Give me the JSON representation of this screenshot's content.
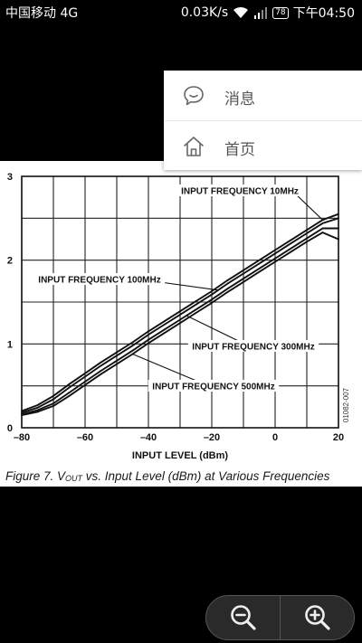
{
  "status_bar": {
    "carrier": "中国移动 4G",
    "net_speed": "0.03K/s",
    "battery": "78",
    "time": "下午04:50",
    "icons": [
      "wifi-icon",
      "signal-icon",
      "battery-icon"
    ]
  },
  "menu": {
    "items": [
      {
        "label": "消息",
        "icon": "chat-bubble-icon"
      },
      {
        "label": "首页",
        "icon": "home-icon"
      }
    ]
  },
  "viewer": {
    "caption_prefix": "Figure 7. V",
    "caption_subscript": "OUT",
    "caption_suffix": " vs. Input Level (dBm) at Various Frequencies",
    "figure_id": "01082-007",
    "zoom_icons": [
      "zoom-out-icon",
      "zoom-in-icon"
    ]
  },
  "chart_data": {
    "type": "line",
    "xlabel": "INPUT LEVEL (dBm)",
    "ylabel": "",
    "xlim": [
      -80,
      20
    ],
    "ylim": [
      0,
      3
    ],
    "x_ticks": [
      -80,
      -60,
      -40,
      -20,
      0,
      20
    ],
    "x_tick_labels": [
      "–80",
      "–60",
      "–40",
      "–20",
      "0",
      "20"
    ],
    "y_ticks": [
      0,
      1,
      2,
      3
    ],
    "y_tick_labels": [
      "0",
      "1",
      "2",
      "3"
    ],
    "grid": true,
    "x": [
      -80,
      -75,
      -70,
      -65,
      -60,
      -55,
      -50,
      -45,
      -40,
      -35,
      -30,
      -25,
      -20,
      -15,
      -10,
      -5,
      0,
      5,
      10,
      15,
      20
    ],
    "series": [
      {
        "name": "INPUT FREQUENCY 10MHz",
        "values": [
          0.2,
          0.27,
          0.38,
          0.52,
          0.65,
          0.78,
          0.9,
          1.02,
          1.15,
          1.27,
          1.39,
          1.51,
          1.63,
          1.76,
          1.88,
          2.0,
          2.12,
          2.24,
          2.36,
          2.48,
          2.55
        ]
      },
      {
        "name": "INPUT FREQUENCY 100MHz",
        "values": [
          0.18,
          0.24,
          0.34,
          0.48,
          0.61,
          0.74,
          0.86,
          0.98,
          1.11,
          1.23,
          1.35,
          1.47,
          1.59,
          1.72,
          1.84,
          1.96,
          2.08,
          2.2,
          2.32,
          2.44,
          2.5
        ]
      },
      {
        "name": "INPUT FREQUENCY 300MHz",
        "values": [
          0.16,
          0.21,
          0.29,
          0.42,
          0.55,
          0.68,
          0.8,
          0.92,
          1.05,
          1.17,
          1.29,
          1.41,
          1.53,
          1.66,
          1.78,
          1.9,
          2.02,
          2.14,
          2.26,
          2.38,
          2.38
        ]
      },
      {
        "name": "INPUT FREQUENCY 500MHz",
        "values": [
          0.15,
          0.19,
          0.26,
          0.38,
          0.51,
          0.64,
          0.76,
          0.88,
          1.01,
          1.13,
          1.25,
          1.37,
          1.49,
          1.62,
          1.74,
          1.86,
          1.98,
          2.1,
          2.22,
          2.33,
          2.25
        ]
      }
    ],
    "annotations": [
      {
        "text": "INPUT FREQUENCY 10MHz",
        "series": 0,
        "target_x": 15
      },
      {
        "text": "INPUT FREQUENCY 100MHz",
        "series": 1,
        "target_x": -18
      },
      {
        "text": "INPUT FREQUENCY 300MHz",
        "series": 2,
        "target_x": -28
      },
      {
        "text": "INPUT FREQUENCY 500MHz",
        "series": 3,
        "target_x": -45
      }
    ]
  }
}
